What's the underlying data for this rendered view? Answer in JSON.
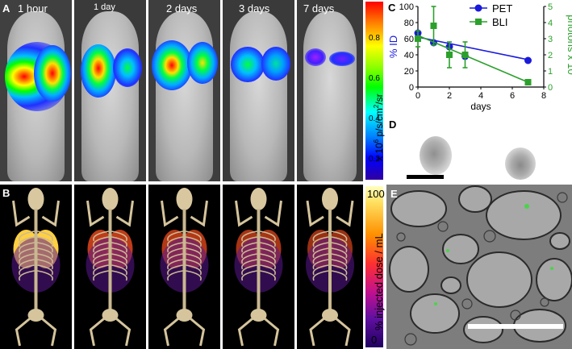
{
  "panel_A": {
    "letter": "A",
    "timepoints": [
      "1 hour",
      "1 day",
      "2 days",
      "3 days",
      "7 days"
    ],
    "colorbar_label": "x 10",
    "colorbar_exp": "6",
    "colorbar_unit": " p/s/cm",
    "colorbar_unit_exp": "2",
    "colorbar_unit_tail": "/sr",
    "colorbar_ticks": [
      "0.8",
      "0.6",
      "0.4",
      "0.2"
    ]
  },
  "panel_B": {
    "letter": "B",
    "colorbar_label": "% injected dose / mL",
    "colorbar_ticks": [
      "100",
      "0"
    ]
  },
  "panel_C": {
    "letter": "C",
    "chart_data": {
      "type": "line",
      "x": [
        0,
        1,
        2,
        3,
        7
      ],
      "xlabel": "days",
      "ylabel_left": "% ID",
      "ylabel_right": "photons x 10",
      "ylabel_right_exp": "7",
      "xlim": [
        0,
        8
      ],
      "ylim_left": [
        0,
        100
      ],
      "ylim_right": [
        0,
        5
      ],
      "xticks": [
        "0",
        "2",
        "4",
        "6",
        "8"
      ],
      "yticks_left": [
        "0",
        "20",
        "40",
        "60",
        "80",
        "100"
      ],
      "yticks_right": [
        "0",
        "1",
        "2",
        "3",
        "4",
        "5"
      ],
      "series": [
        {
          "name": "PET",
          "color": "#1a1adb",
          "axis": "left",
          "x": [
            0,
            1,
            2,
            3,
            7
          ],
          "values": [
            67,
            55,
            50,
            38,
            33
          ],
          "fit": [
            [
              0,
              62
            ],
            [
              7,
              34
            ]
          ]
        },
        {
          "name": "BLI",
          "color": "#2ca02c",
          "axis": "right",
          "x": [
            0,
            1,
            2,
            3,
            7
          ],
          "values": [
            3.0,
            3.8,
            2.0,
            2.0,
            0.3
          ],
          "err": [
            0.5,
            1.2,
            0.8,
            0.8,
            0.1
          ],
          "fit": [
            [
              0,
              3.2
            ],
            [
              7,
              0.3
            ]
          ]
        }
      ]
    }
  },
  "panel_D": {
    "letter": "D"
  },
  "panel_E": {
    "letter": "E"
  },
  "colors": {
    "bli_low": "#2020ff",
    "bli_high": "#ff2020",
    "pet_low": "#3b0a8c",
    "pet_high": "#ffff80"
  }
}
